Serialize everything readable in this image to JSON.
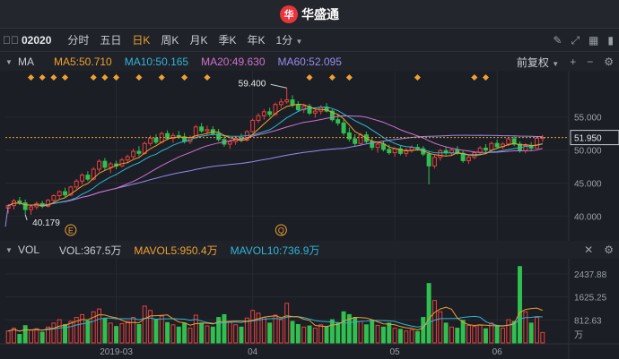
{
  "app": {
    "logo_text": "华盛通",
    "logo_mark": "华"
  },
  "toolbar": {
    "code": "02020",
    "periods": [
      {
        "label": "分时",
        "active": false
      },
      {
        "label": "五日",
        "active": false
      },
      {
        "label": "日K",
        "active": true
      },
      {
        "label": "周K",
        "active": false
      },
      {
        "label": "月K",
        "active": false
      },
      {
        "label": "季K",
        "active": false
      },
      {
        "label": "年K",
        "active": false
      }
    ],
    "interval": "1分",
    "icons": [
      "pencil-icon",
      "expand-icon",
      "grid-icon",
      "sidebar-icon"
    ]
  },
  "main_legend": {
    "name": "MA",
    "ma5": "MA5:50.710",
    "ma10": "MA10:50.165",
    "ma20": "MA20:49.630",
    "ma60": "MA60:52.095",
    "adjust": "前复权",
    "colors": {
      "ma5": "#f0a030",
      "ma10": "#2fb5d8",
      "ma20": "#d070d0",
      "ma60": "#9a8af0"
    }
  },
  "vol_legend": {
    "name": "VOL",
    "vol": "VOL:367.5万",
    "mavol5": "MAVOL5:950.4万",
    "mavol10": "MAVOL10:736.9万",
    "colors": {
      "vol": "#c8ccd4",
      "mavol5": "#f0a030",
      "mavol10": "#2fb5d8"
    }
  },
  "price_axis": {
    "labels": [
      "55.000",
      "50.000",
      "45.000",
      "40.000"
    ],
    "last_price": "51.950"
  },
  "vol_axis": {
    "labels": [
      "2437.88",
      "1625.25",
      "812.63"
    ],
    "unit": "万"
  },
  "annotations": {
    "high": "59.400",
    "low": "40.179",
    "event_e": "E",
    "event_q": "Q"
  },
  "x_axis": {
    "labels": [
      "2019-03",
      "04",
      "05",
      "06"
    ]
  },
  "chart_data": {
    "type": "candlestick",
    "ylim": [
      36.8,
      61.2
    ],
    "vol_ylim": [
      0,
      2850
    ],
    "up_color": "#e84040",
    "down_color": "#30c050",
    "candles": [
      [
        41.2,
        41.8,
        40.4,
        41.6,
        420
      ],
      [
        41.6,
        42.6,
        41.0,
        42.3,
        520
      ],
      [
        42.3,
        42.9,
        41.7,
        42.0,
        300
      ],
      [
        42.0,
        42.5,
        40.2,
        41.0,
        610
      ],
      [
        41.0,
        41.6,
        40.2,
        41.4,
        450
      ],
      [
        41.4,
        42.2,
        41.0,
        41.9,
        500
      ],
      [
        41.9,
        42.3,
        41.2,
        41.5,
        380
      ],
      [
        41.5,
        42.6,
        41.3,
        42.4,
        560
      ],
      [
        42.4,
        43.3,
        42.1,
        43.1,
        700
      ],
      [
        43.1,
        43.9,
        42.6,
        43.7,
        820
      ],
      [
        43.7,
        44.3,
        42.9,
        43.2,
        650
      ],
      [
        43.2,
        44.6,
        43.0,
        44.4,
        760
      ],
      [
        44.4,
        45.6,
        44.1,
        45.3,
        900
      ],
      [
        45.3,
        46.5,
        44.8,
        46.2,
        1000
      ],
      [
        46.2,
        46.8,
        45.3,
        45.6,
        780
      ],
      [
        45.6,
        47.4,
        45.4,
        47.1,
        1100
      ],
      [
        47.1,
        48.6,
        46.7,
        48.3,
        1200
      ],
      [
        48.3,
        48.8,
        47.0,
        47.4,
        850
      ],
      [
        47.4,
        48.2,
        46.5,
        47.9,
        700
      ],
      [
        47.9,
        48.4,
        47.1,
        47.6,
        580
      ],
      [
        47.6,
        48.8,
        47.4,
        48.5,
        680
      ],
      [
        48.5,
        49.3,
        48.0,
        49.0,
        760
      ],
      [
        49.0,
        50.2,
        48.7,
        49.8,
        900
      ],
      [
        49.8,
        50.6,
        49.1,
        49.5,
        650
      ],
      [
        49.5,
        51.3,
        49.3,
        51.0,
        1300
      ],
      [
        51.0,
        52.2,
        50.6,
        51.8,
        1150
      ],
      [
        51.8,
        52.4,
        50.9,
        51.2,
        820
      ],
      [
        51.2,
        52.8,
        51.0,
        52.5,
        950
      ],
      [
        52.5,
        53.0,
        51.5,
        51.8,
        720
      ],
      [
        51.8,
        52.6,
        51.1,
        52.2,
        640
      ],
      [
        52.2,
        52.9,
        51.7,
        52.0,
        560
      ],
      [
        52.0,
        52.6,
        51.0,
        51.3,
        700
      ],
      [
        51.3,
        52.2,
        50.9,
        51.9,
        520
      ],
      [
        51.9,
        53.8,
        51.7,
        53.5,
        980
      ],
      [
        53.5,
        54.1,
        52.6,
        52.9,
        700
      ],
      [
        52.9,
        53.7,
        52.3,
        53.1,
        600
      ],
      [
        53.1,
        53.6,
        52.2,
        52.5,
        560
      ],
      [
        52.5,
        53.2,
        51.3,
        51.6,
        900
      ],
      [
        51.6,
        52.3,
        50.5,
        50.9,
        1000
      ],
      [
        50.9,
        51.6,
        50.2,
        51.3,
        760
      ],
      [
        51.3,
        52.1,
        50.8,
        51.8,
        640
      ],
      [
        51.8,
        52.5,
        51.2,
        51.5,
        560
      ],
      [
        51.5,
        53.0,
        51.3,
        52.8,
        880
      ],
      [
        52.8,
        54.8,
        52.6,
        54.5,
        1150
      ],
      [
        54.5,
        55.6,
        54.1,
        55.2,
        1050
      ],
      [
        55.2,
        56.2,
        54.6,
        55.8,
        900
      ],
      [
        55.8,
        56.4,
        55.0,
        55.4,
        700
      ],
      [
        55.4,
        57.2,
        55.2,
        56.9,
        980
      ],
      [
        56.9,
        57.8,
        56.4,
        57.3,
        820
      ],
      [
        57.3,
        59.4,
        57.0,
        57.6,
        1400
      ],
      [
        57.6,
        58.3,
        56.5,
        56.8,
        760
      ],
      [
        56.8,
        57.4,
        55.8,
        56.1,
        650
      ],
      [
        56.1,
        56.9,
        55.6,
        56.6,
        560
      ],
      [
        56.6,
        57.0,
        55.3,
        55.6,
        600
      ],
      [
        55.6,
        56.3,
        54.9,
        55.9,
        520
      ],
      [
        55.9,
        56.8,
        55.4,
        56.5,
        640
      ],
      [
        56.5,
        57.1,
        55.7,
        55.9,
        580
      ],
      [
        55.9,
        56.2,
        54.3,
        54.6,
        820
      ],
      [
        54.6,
        55.4,
        53.7,
        54.1,
        700
      ],
      [
        54.1,
        54.6,
        52.2,
        52.6,
        1100
      ],
      [
        52.6,
        53.4,
        51.3,
        51.7,
        1000
      ],
      [
        51.7,
        52.4,
        50.6,
        51.0,
        900
      ],
      [
        51.0,
        52.6,
        50.8,
        52.3,
        760
      ],
      [
        52.3,
        52.8,
        51.0,
        51.3,
        640
      ],
      [
        51.3,
        51.8,
        50.0,
        50.4,
        800
      ],
      [
        50.4,
        51.2,
        49.6,
        50.9,
        620
      ],
      [
        50.9,
        51.4,
        49.8,
        50.1,
        560
      ],
      [
        50.1,
        50.8,
        49.3,
        49.6,
        700
      ],
      [
        49.6,
        50.4,
        49.0,
        50.2,
        520
      ],
      [
        50.2,
        50.6,
        49.2,
        49.5,
        480
      ],
      [
        49.5,
        50.3,
        49.0,
        50.0,
        420
      ],
      [
        50.0,
        50.7,
        49.6,
        50.4,
        460
      ],
      [
        50.4,
        50.9,
        49.9,
        50.2,
        400
      ],
      [
        50.2,
        50.6,
        49.1,
        49.4,
        900
      ],
      [
        49.4,
        49.9,
        44.8,
        47.6,
        2100
      ],
      [
        47.6,
        49.3,
        47.2,
        48.9,
        1500
      ],
      [
        48.9,
        50.2,
        48.4,
        49.9,
        1100
      ],
      [
        49.9,
        50.5,
        49.2,
        49.6,
        700
      ],
      [
        49.6,
        50.3,
        49.1,
        50.0,
        560
      ],
      [
        50.0,
        50.6,
        49.3,
        49.5,
        520
      ],
      [
        49.5,
        49.9,
        48.1,
        48.4,
        800
      ],
      [
        48.4,
        49.2,
        47.9,
        48.9,
        620
      ],
      [
        48.9,
        49.8,
        48.6,
        49.6,
        580
      ],
      [
        49.6,
        50.6,
        49.3,
        50.3,
        640
      ],
      [
        50.3,
        50.9,
        49.7,
        50.0,
        500
      ],
      [
        50.0,
        51.3,
        49.8,
        51.0,
        700
      ],
      [
        51.0,
        51.6,
        50.2,
        50.5,
        600
      ],
      [
        50.5,
        51.2,
        50.1,
        50.9,
        520
      ],
      [
        50.9,
        52.0,
        50.6,
        51.7,
        820
      ],
      [
        51.7,
        52.1,
        50.6,
        50.9,
        760
      ],
      [
        50.9,
        51.3,
        49.6,
        49.9,
        2700
      ],
      [
        49.9,
        51.0,
        49.5,
        50.7,
        1100
      ],
      [
        50.7,
        51.2,
        49.9,
        50.3,
        700
      ],
      [
        50.3,
        52.0,
        50.2,
        51.8,
        900
      ],
      [
        51.8,
        52.3,
        51.2,
        51.9,
        368
      ]
    ]
  }
}
